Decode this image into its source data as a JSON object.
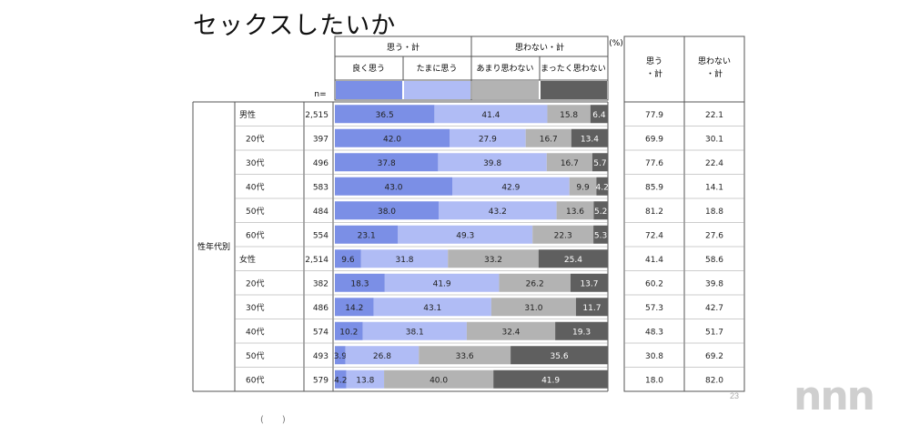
{
  "title": "セックスしたいか",
  "page_number": "23",
  "watermark": "nnn",
  "bottom_fragment": "(　　)",
  "n_label": "n=",
  "percent_label": "(%)",
  "side_label": "性年代別",
  "header": {
    "group_agree": "思う・計",
    "group_disagree": "思わない・計",
    "col_often": "良く思う",
    "col_sometimes": "たまに思う",
    "col_not_much": "あまり思わない",
    "col_not_at_all": "まったく思わない",
    "total_agree": [
      "思う",
      "・計"
    ],
    "total_disagree": [
      "思わない",
      "・計"
    ]
  },
  "colors": {
    "often": "#7b8fe6",
    "sometimes": "#b0bcf5",
    "not_much": "#b3b3b3",
    "not_at_all": "#5f5f5f"
  },
  "chart_data": {
    "type": "bar",
    "stacked": true,
    "orientation": "horizontal",
    "title": "セックスしたいか",
    "categories": [
      "男性",
      "20代",
      "30代",
      "40代",
      "50代",
      "60代",
      "女性",
      "20代",
      "30代",
      "40代",
      "50代",
      "60代"
    ],
    "n": [
      "2,515",
      "397",
      "496",
      "583",
      "484",
      "554",
      "2,514",
      "382",
      "486",
      "574",
      "493",
      "579"
    ],
    "series": [
      {
        "name": "良く思う",
        "values": [
          36.5,
          42.0,
          37.8,
          43.0,
          38.0,
          23.1,
          9.6,
          18.3,
          14.2,
          10.2,
          3.9,
          4.2
        ]
      },
      {
        "name": "たまに思う",
        "values": [
          41.4,
          27.9,
          39.8,
          42.9,
          43.2,
          49.3,
          31.8,
          41.9,
          43.1,
          38.1,
          26.8,
          13.8
        ]
      },
      {
        "name": "あまり思わない",
        "values": [
          15.8,
          16.7,
          16.7,
          9.9,
          13.6,
          22.3,
          33.2,
          26.2,
          31.0,
          32.4,
          33.6,
          40.0
        ]
      },
      {
        "name": "まったく思わない",
        "values": [
          6.4,
          13.4,
          5.7,
          4.2,
          5.2,
          5.3,
          25.4,
          13.7,
          11.7,
          19.3,
          35.6,
          41.9
        ]
      }
    ],
    "totals": {
      "agree": [
        77.9,
        69.9,
        77.6,
        85.9,
        81.2,
        72.4,
        41.4,
        60.2,
        57.3,
        48.3,
        30.8,
        18.0
      ],
      "disagree": [
        22.1,
        30.1,
        22.4,
        14.1,
        18.8,
        27.6,
        58.6,
        39.8,
        42.7,
        51.7,
        69.2,
        82.0
      ]
    },
    "xlim": [
      0,
      100
    ],
    "unit": "%"
  }
}
